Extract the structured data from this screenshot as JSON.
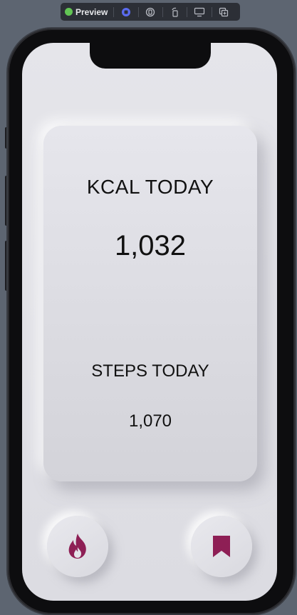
{
  "toolbar": {
    "preview_label": "Preview",
    "status_color": "#62c554",
    "buttons": [
      "live-preview-icon",
      "selectable-icon",
      "rotate-icon",
      "device-settings-icon",
      "duplicate-icon"
    ]
  },
  "main": {
    "kcal_label": "KCAL TODAY",
    "kcal_value": "1,032",
    "steps_label": "STEPS TODAY",
    "steps_value": "1,070"
  },
  "buttons": {
    "fire_icon": "flame-icon",
    "save_icon": "bookmark-icon",
    "accent_color": "#8e1f55"
  }
}
